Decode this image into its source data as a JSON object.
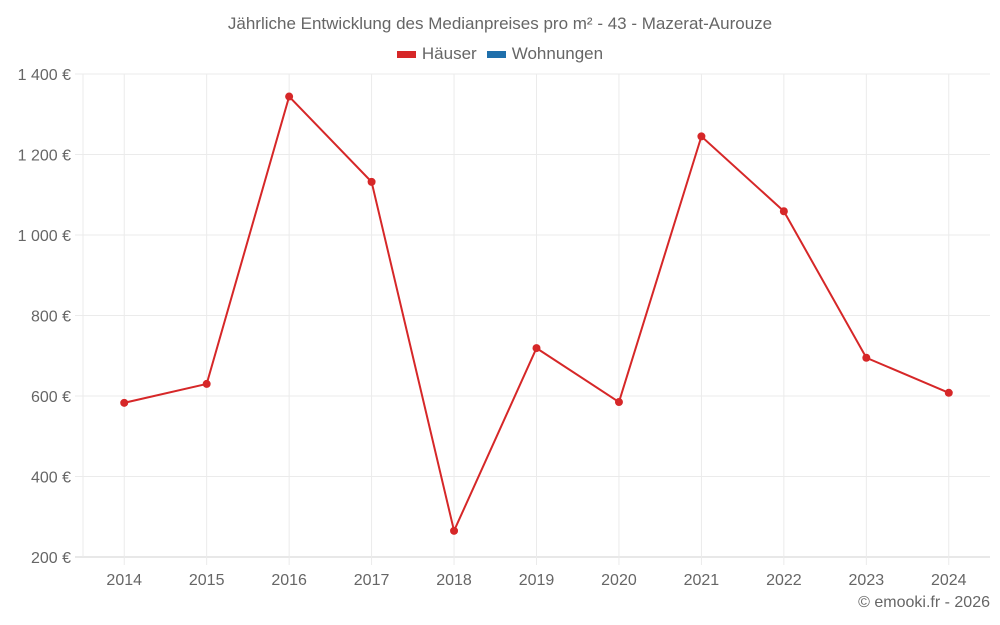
{
  "chart_data": {
    "type": "line",
    "title": "Jährliche Entwicklung des Medianpreises pro m² - 43 - Mazerat-Aurouze",
    "xlabel": "",
    "ylabel": "",
    "categories": [
      "2014",
      "2015",
      "2016",
      "2017",
      "2018",
      "2019",
      "2020",
      "2021",
      "2022",
      "2023",
      "2024"
    ],
    "series": [
      {
        "name": "Häuser",
        "color": "#d62728",
        "values": [
          583,
          630,
          1344,
          1132,
          265,
          719,
          585,
          1245,
          1059,
          695,
          608
        ]
      },
      {
        "name": "Wohnungen",
        "color": "#1f6fab",
        "values": []
      }
    ],
    "yticks": [
      "200 €",
      "400 €",
      "600 €",
      "800 €",
      "1 000 €",
      "1 200 €",
      "1 400 €"
    ],
    "ylim": [
      200,
      1400
    ],
    "grid": true,
    "legend_position": "top"
  },
  "legend": [
    {
      "label": "Häuser",
      "color": "#d62728"
    },
    {
      "label": "Wohnungen",
      "color": "#1f6fab"
    }
  ],
  "credit": "© emooki.fr - 2026"
}
